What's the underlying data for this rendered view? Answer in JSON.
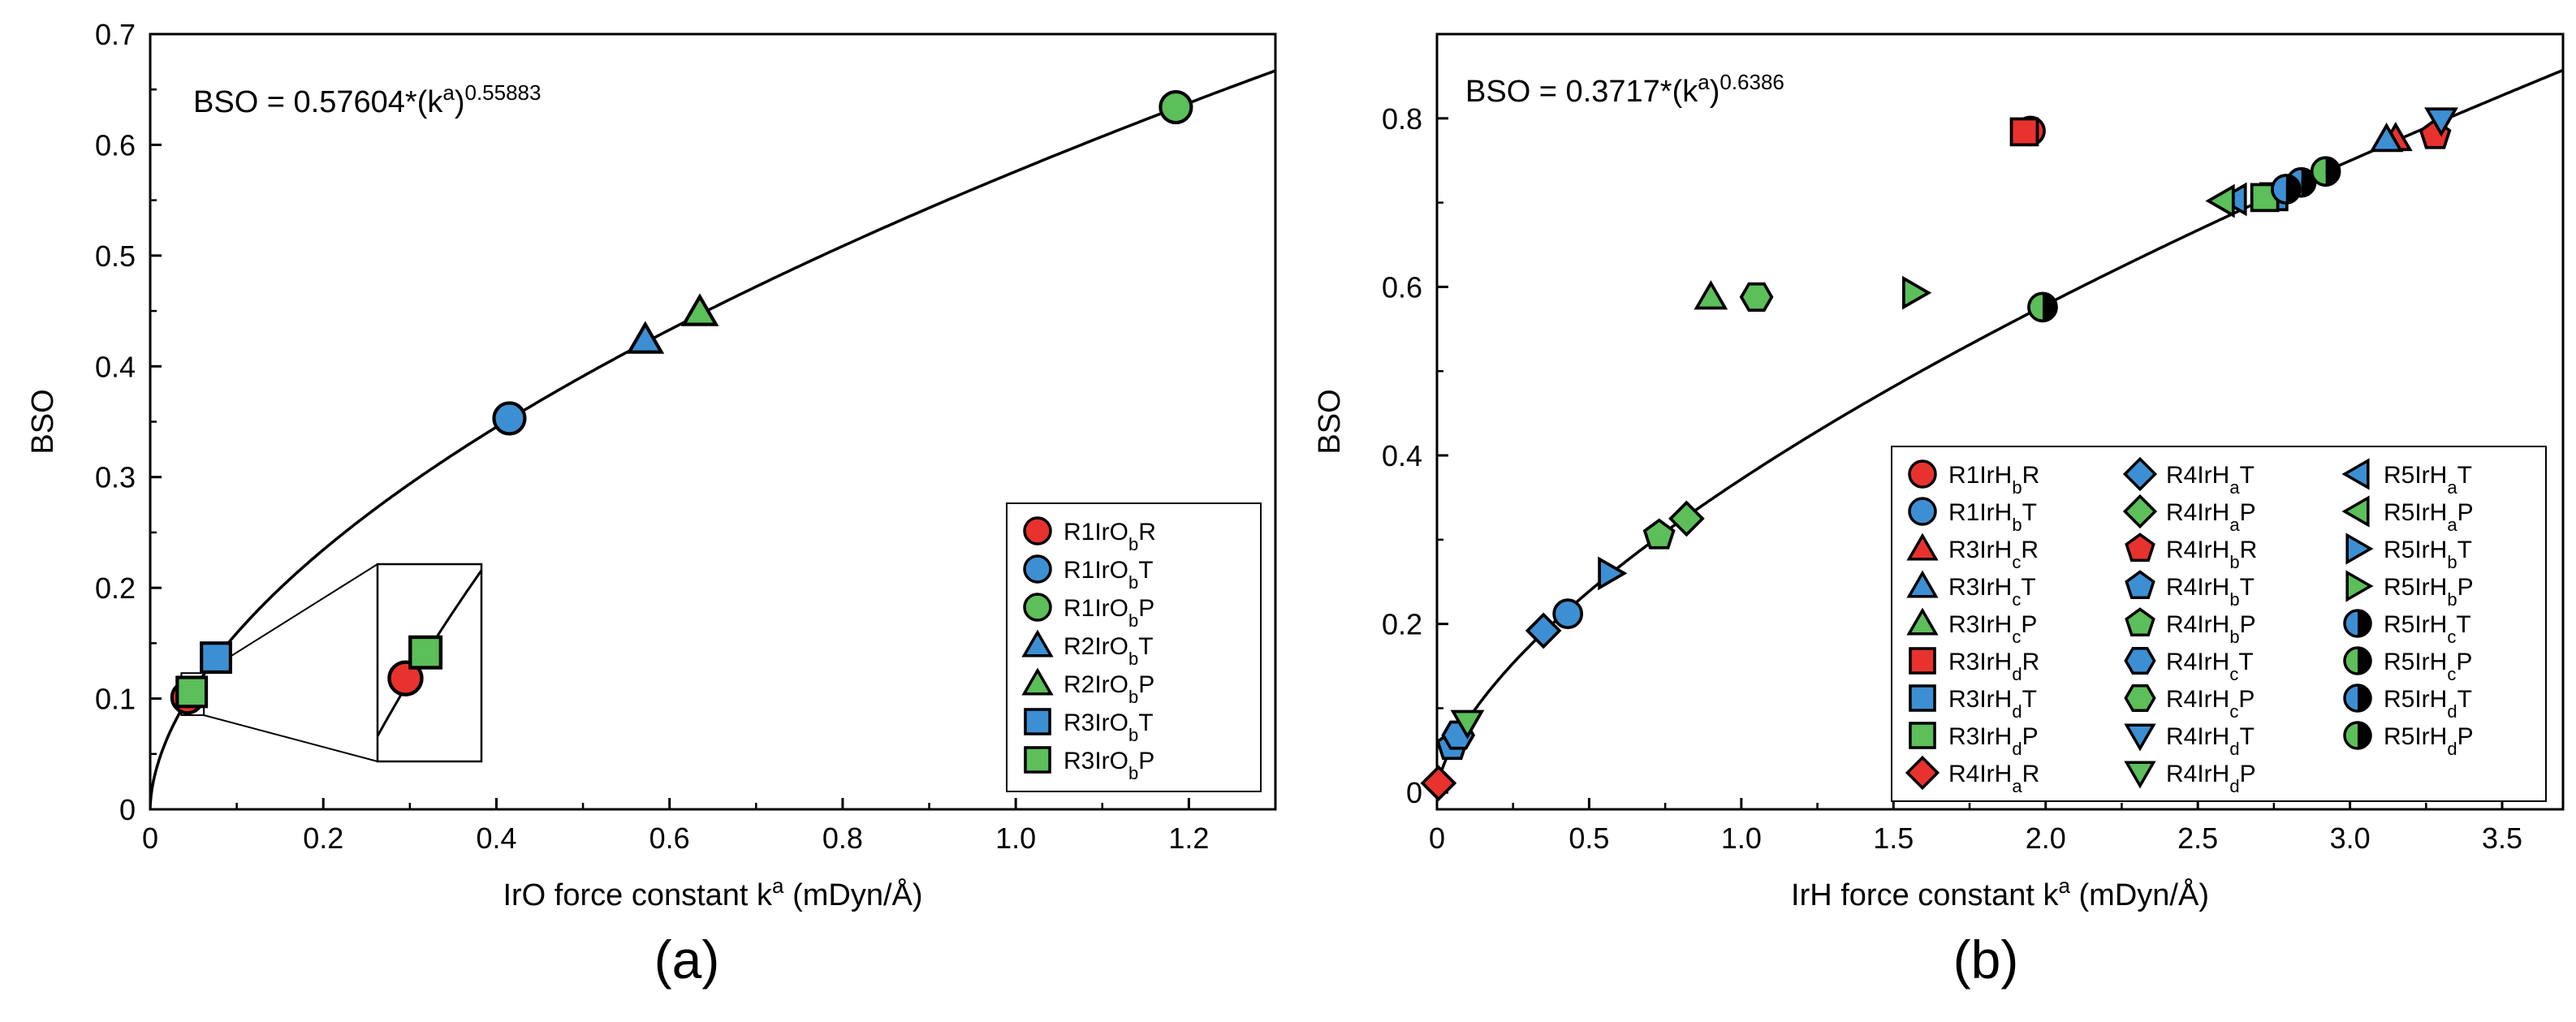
{
  "panel_labels": [
    "(a)",
    "(b)"
  ],
  "chart_data": [
    {
      "type": "scatter",
      "panel": "(a)",
      "xlabel": "IrO force constant k",
      "xlabel_sup": "a",
      "xlabel_unit": "(mDyn/Å)",
      "ylabel": "BSO",
      "xlim": [
        0,
        1.3
      ],
      "ylim": [
        0,
        0.7
      ],
      "xticks": [
        "0",
        "0.2",
        "0.4",
        "0.6",
        "0.8",
        "1.0",
        "1.2"
      ],
      "yticks": [
        "0",
        "0.1",
        "0.2",
        "0.3",
        "0.4",
        "0.5",
        "0.6",
        "0.7"
      ],
      "xtick_values": [
        0,
        0.2,
        0.4,
        0.6,
        0.8,
        1.0,
        1.2
      ],
      "ytick_values": [
        0,
        0.1,
        0.2,
        0.3,
        0.4,
        0.5,
        0.6,
        0.7
      ],
      "fit": {
        "a": 0.57604,
        "b": 0.55883
      },
      "equation": {
        "lhs": "BSO = 0.57604*(k",
        "sup": "a",
        "mid": ")",
        "exp": "0.55883"
      },
      "legend_position": "bottom-right",
      "series": [
        {
          "name": "R1IrObR",
          "label": {
            "base": "R1IrO",
            "sub": "b",
            "end": "R"
          },
          "marker": "circle",
          "fill": "red",
          "x": [
            0.043
          ],
          "y": [
            0.101
          ]
        },
        {
          "name": "R1IrObT",
          "label": {
            "base": "R1IrO",
            "sub": "b",
            "end": "T"
          },
          "marker": "circle",
          "fill": "blue",
          "x": [
            0.415
          ],
          "y": [
            0.353
          ]
        },
        {
          "name": "R1IrObP",
          "label": {
            "base": "R1IrO",
            "sub": "b",
            "end": "P"
          },
          "marker": "circle",
          "fill": "green",
          "x": [
            1.185
          ],
          "y": [
            0.634
          ]
        },
        {
          "name": "R2IrObT",
          "label": {
            "base": "R2IrO",
            "sub": "b",
            "end": "T"
          },
          "marker": "triangle-up",
          "fill": "blue",
          "x": [
            0.572
          ],
          "y": [
            0.424
          ]
        },
        {
          "name": "R2IrObP",
          "label": {
            "base": "R2IrO",
            "sub": "b",
            "end": "P"
          },
          "marker": "triangle-up",
          "fill": "green",
          "x": [
            0.635
          ],
          "y": [
            0.449
          ]
        },
        {
          "name": "R3IrObT",
          "label": {
            "base": "R3IrO",
            "sub": "b",
            "end": "T"
          },
          "marker": "square",
          "fill": "blue",
          "x": [
            0.076
          ],
          "y": [
            0.137
          ]
        },
        {
          "name": "R3IrObP",
          "label": {
            "base": "R3IrO",
            "sub": "b",
            "end": "P"
          },
          "marker": "square",
          "fill": "green",
          "x": [
            0.048
          ],
          "y": [
            0.106
          ]
        }
      ]
    },
    {
      "type": "scatter",
      "panel": "(b)",
      "xlabel": "IrH force constant k",
      "xlabel_sup": "a",
      "xlabel_unit": "(mDyn/Å)",
      "ylabel": "BSO",
      "xlim": [
        0,
        3.7
      ],
      "ylim": [
        -0.02,
        0.9
      ],
      "xticks": [
        "0",
        "0.5",
        "1.0",
        "1.5",
        "2.0",
        "2.5",
        "3.0",
        "3.5"
      ],
      "yticks": [
        "0",
        "0.2",
        "0.4",
        "0.6",
        "0.8"
      ],
      "xtick_values": [
        0,
        0.5,
        1.0,
        1.5,
        2.0,
        2.5,
        3.0,
        3.5
      ],
      "ytick_values": [
        0,
        0.2,
        0.4,
        0.6,
        0.8
      ],
      "fit": {
        "a": 0.3717,
        "b": 0.6386
      },
      "equation": {
        "lhs": "BSO = 0.3717*(k",
        "sup": "a",
        "mid": ")",
        "exp": "0.6386"
      },
      "legend_position": "bottom-right",
      "series": [
        {
          "name": "R1IrHbR",
          "label": {
            "base": "R1IrH",
            "sub": "b",
            "end": "R"
          },
          "marker": "circle",
          "fill": "red",
          "x": [
            1.95
          ],
          "y": [
            0.785
          ]
        },
        {
          "name": "R1IrHbT",
          "label": {
            "base": "R1IrH",
            "sub": "b",
            "end": "T"
          },
          "marker": "circle",
          "fill": "blue",
          "x": [
            0.43
          ],
          "y": [
            0.212
          ]
        },
        {
          "name": "R3IrHcR",
          "label": {
            "base": "R3IrH",
            "sub": "c",
            "end": "R"
          },
          "marker": "triangle-up",
          "fill": "red",
          "x": [
            3.15
          ],
          "y": [
            0.776
          ]
        },
        {
          "name": "R3IrHcT",
          "label": {
            "base": "R3IrH",
            "sub": "c",
            "end": "T"
          },
          "marker": "triangle-up",
          "fill": "blue",
          "x": [
            3.12
          ],
          "y": [
            0.775
          ]
        },
        {
          "name": "R3IrHcP",
          "label": {
            "base": "R3IrH",
            "sub": "c",
            "end": "P"
          },
          "marker": "triangle-up",
          "fill": "green",
          "x": [
            0.9
          ],
          "y": [
            0.588
          ]
        },
        {
          "name": "R3IrHdR",
          "label": {
            "base": "R3IrH",
            "sub": "d",
            "end": "R"
          },
          "marker": "square",
          "fill": "red",
          "x": [
            1.93
          ],
          "y": [
            0.784
          ]
        },
        {
          "name": "R3IrHdT",
          "label": {
            "base": "R3IrH",
            "sub": "d",
            "end": "T"
          },
          "marker": "square",
          "fill": "blue",
          "x": [
            2.75
          ],
          "y": [
            0.707
          ]
        },
        {
          "name": "R3IrHdP",
          "label": {
            "base": "R3IrH",
            "sub": "d",
            "end": "P"
          },
          "marker": "square",
          "fill": "green",
          "x": [
            2.72
          ],
          "y": [
            0.706
          ]
        },
        {
          "name": "R4IrHaR",
          "label": {
            "base": "R4IrH",
            "sub": "a",
            "end": "R"
          },
          "marker": "diamond",
          "fill": "red",
          "x": [
            0.005
          ],
          "y": [
            0.011
          ]
        },
        {
          "name": "R4IrHaT",
          "label": {
            "base": "R4IrH",
            "sub": "a",
            "end": "T"
          },
          "marker": "diamond",
          "fill": "blue",
          "x": [
            0.35
          ],
          "y": [
            0.192
          ]
        },
        {
          "name": "R4IrHaP",
          "label": {
            "base": "R4IrH",
            "sub": "a",
            "end": "P"
          },
          "marker": "diamond",
          "fill": "green",
          "x": [
            0.82
          ],
          "y": [
            0.325
          ]
        },
        {
          "name": "R4IrHbR",
          "label": {
            "base": "R4IrH",
            "sub": "b",
            "end": "R"
          },
          "marker": "pentagon",
          "fill": "red",
          "x": [
            3.28
          ],
          "y": [
            0.78
          ]
        },
        {
          "name": "R4IrHbT",
          "label": {
            "base": "R4IrH",
            "sub": "b",
            "end": "T"
          },
          "marker": "pentagon",
          "fill": "blue",
          "x": [
            0.05
          ],
          "y": [
            0.055
          ]
        },
        {
          "name": "R4IrHbP",
          "label": {
            "base": "R4IrH",
            "sub": "b",
            "end": "P"
          },
          "marker": "pentagon",
          "fill": "green",
          "x": [
            0.73
          ],
          "y": [
            0.305
          ]
        },
        {
          "name": "R4IrHcT",
          "label": {
            "base": "R4IrH",
            "sub": "c",
            "end": "T"
          },
          "marker": "hexagon",
          "fill": "blue",
          "x": [
            0.07
          ],
          "y": [
            0.068
          ]
        },
        {
          "name": "R4IrHcP",
          "label": {
            "base": "R4IrH",
            "sub": "c",
            "end": "P"
          },
          "marker": "hexagon",
          "fill": "green",
          "x": [
            1.05
          ],
          "y": [
            0.588
          ]
        },
        {
          "name": "R4IrHdT",
          "label": {
            "base": "R4IrH",
            "sub": "d",
            "end": "T"
          },
          "marker": "triangle-down",
          "fill": "blue",
          "x": [
            3.3
          ],
          "y": [
            0.798
          ]
        },
        {
          "name": "R4IrHdP",
          "label": {
            "base": "R4IrH",
            "sub": "d",
            "end": "P"
          },
          "marker": "triangle-down",
          "fill": "green",
          "x": [
            0.1
          ],
          "y": [
            0.083
          ]
        },
        {
          "name": "R5IrHaT",
          "label": {
            "base": "R5IrH",
            "sub": "a",
            "end": "T"
          },
          "marker": "triangle-left",
          "fill": "blue",
          "x": [
            2.62
          ],
          "y": [
            0.704
          ]
        },
        {
          "name": "R5IrHaP",
          "label": {
            "base": "R5IrH",
            "sub": "a",
            "end": "P"
          },
          "marker": "triangle-left",
          "fill": "green",
          "x": [
            2.58
          ],
          "y": [
            0.702
          ]
        },
        {
          "name": "R5IrHbT",
          "label": {
            "base": "R5IrH",
            "sub": "b",
            "end": "T"
          },
          "marker": "triangle-right",
          "fill": "blue",
          "x": [
            0.57
          ],
          "y": [
            0.26
          ]
        },
        {
          "name": "R5IrHbP",
          "label": {
            "base": "R5IrH",
            "sub": "b",
            "end": "P"
          },
          "marker": "triangle-right",
          "fill": "green",
          "x": [
            1.57
          ],
          "y": [
            0.593
          ]
        },
        {
          "name": "R5IrHcT",
          "label": {
            "base": "R5IrH",
            "sub": "c",
            "end": "T"
          },
          "marker": "half-circle",
          "fill": "blue",
          "x": [
            2.84
          ],
          "y": [
            0.724
          ]
        },
        {
          "name": "R5IrHcP",
          "label": {
            "base": "R5IrH",
            "sub": "c",
            "end": "P"
          },
          "marker": "half-circle",
          "fill": "green",
          "x": [
            2.92
          ],
          "y": [
            0.737
          ]
        },
        {
          "name": "R5IrHdT",
          "label": {
            "base": "R5IrH",
            "sub": "d",
            "end": "T"
          },
          "marker": "half-circle",
          "fill": "blue",
          "x": [
            2.79
          ],
          "y": [
            0.716
          ]
        },
        {
          "name": "R5IrHdP",
          "label": {
            "base": "R5IrH",
            "sub": "d",
            "end": "P"
          },
          "marker": "half-circle",
          "fill": "green",
          "x": [
            1.99
          ],
          "y": [
            0.576
          ]
        }
      ]
    }
  ],
  "colors": {
    "red": "#e8322e",
    "blue": "#3d8fd3",
    "green": "#5cbf5a",
    "axis": "#000000",
    "curve": "#000000"
  }
}
